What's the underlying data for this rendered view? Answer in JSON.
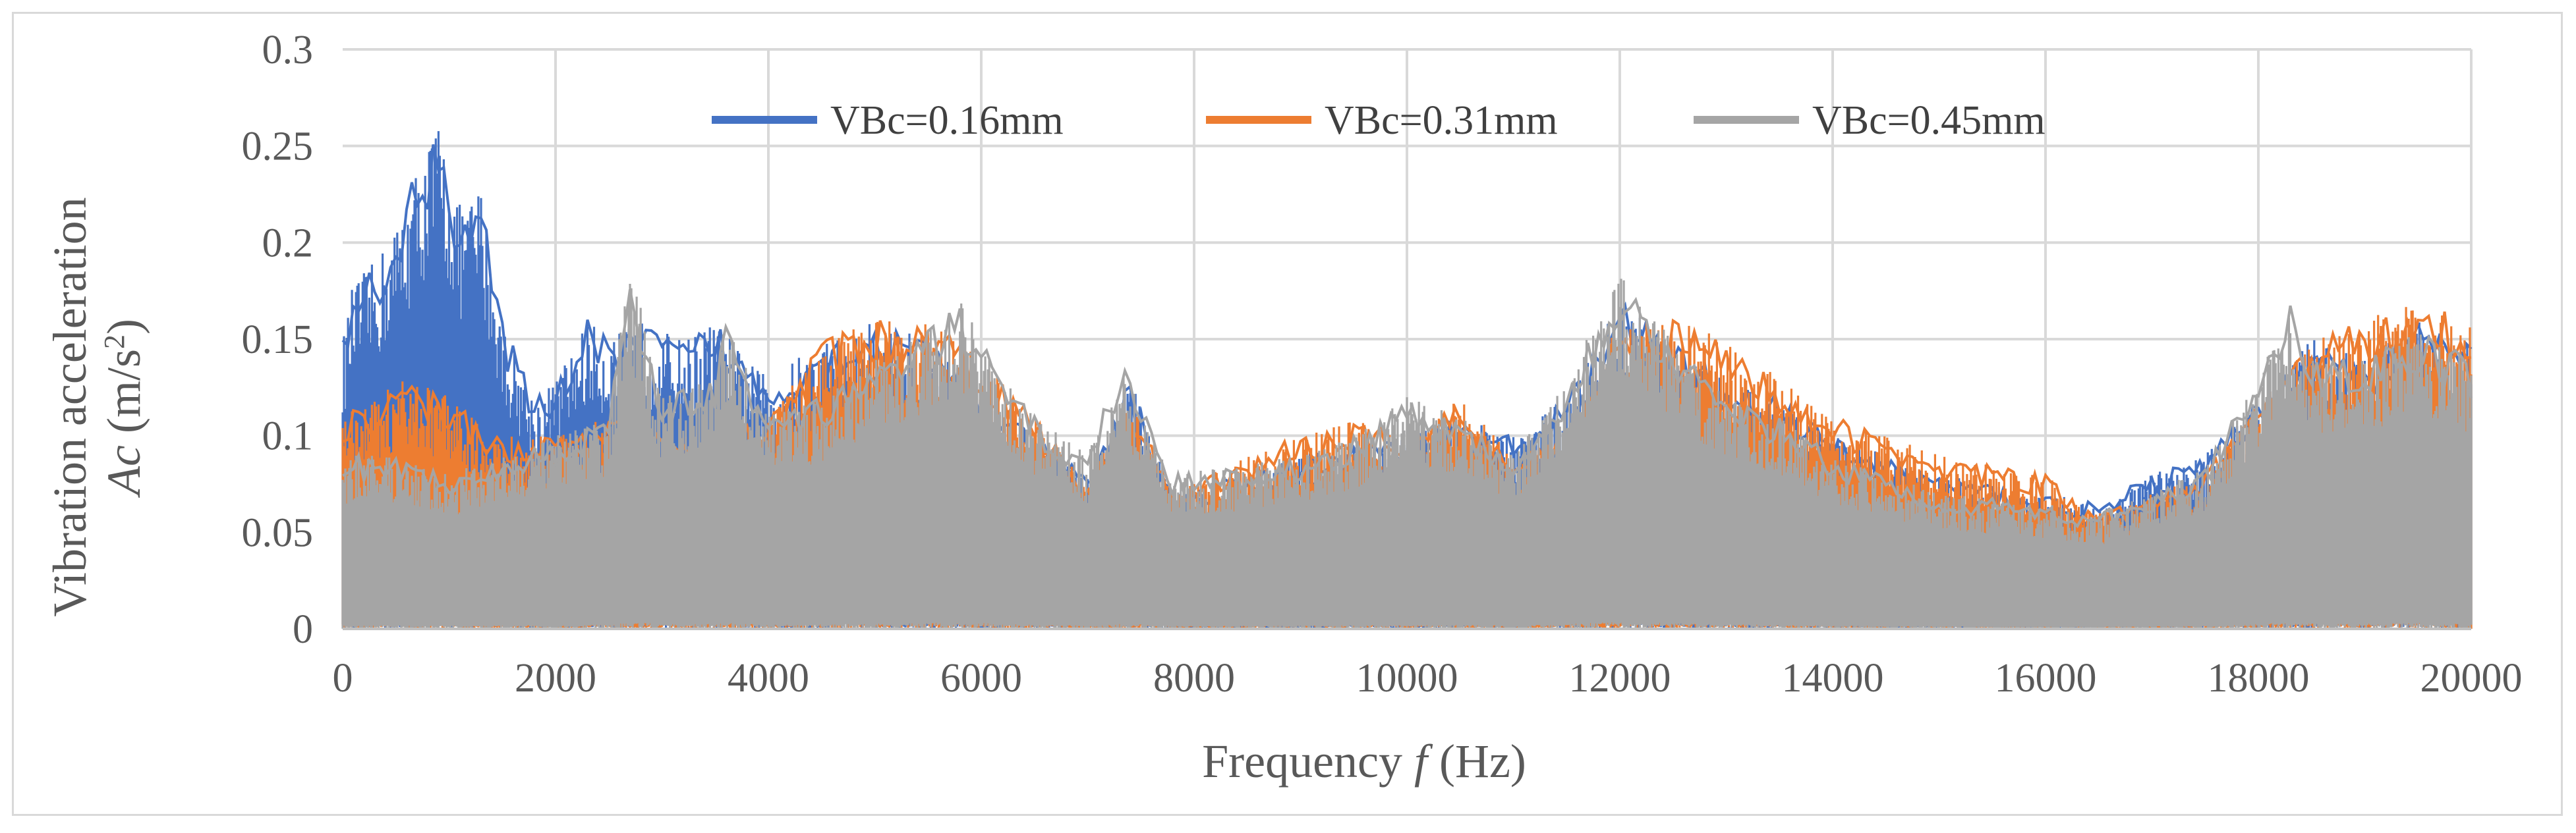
{
  "chart_data": {
    "type": "line",
    "title": "",
    "xlabel_prefix": "Frequency ",
    "xlabel_var": "f",
    "xlabel_suffix": " (Hz)",
    "ylabel_line1": "Vibration acceleration",
    "ylabel_var": "Ac",
    "ylabel_unit": " (m/s",
    "ylabel_unit_sup": "2",
    "ylabel_unit_end": ")",
    "xlim": [
      0,
      20000
    ],
    "ylim": [
      0,
      0.3
    ],
    "x_ticks": [
      "0",
      "2000",
      "4000",
      "6000",
      "8000",
      "10000",
      "12000",
      "14000",
      "16000",
      "18000",
      "20000"
    ],
    "y_ticks": [
      "0",
      "0.05",
      "0.1",
      "0.15",
      "0.2",
      "0.25",
      "0.3"
    ],
    "grid": true,
    "legend_position": "top-center",
    "series": [
      {
        "name": "VBc=0.16mm",
        "color": "#4472c4",
        "envelope": [
          [
            0,
            0.15
          ],
          [
            100,
            0.18
          ],
          [
            300,
            0.19
          ],
          [
            500,
            0.21
          ],
          [
            700,
            0.24
          ],
          [
            900,
            0.265
          ],
          [
            1100,
            0.22
          ],
          [
            1300,
            0.23
          ],
          [
            1500,
            0.16
          ],
          [
            1800,
            0.12
          ],
          [
            2000,
            0.13
          ],
          [
            2300,
            0.16
          ],
          [
            2500,
            0.15
          ],
          [
            2800,
            0.16
          ],
          [
            3200,
            0.15
          ],
          [
            3500,
            0.16
          ],
          [
            3800,
            0.14
          ],
          [
            4000,
            0.13
          ],
          [
            4500,
            0.15
          ],
          [
            5000,
            0.16
          ],
          [
            5500,
            0.15
          ],
          [
            6000,
            0.12
          ],
          [
            6500,
            0.1
          ],
          [
            7000,
            0.08
          ],
          [
            7400,
            0.13
          ],
          [
            7800,
            0.07
          ],
          [
            8500,
            0.08
          ],
          [
            9000,
            0.09
          ],
          [
            9500,
            0.095
          ],
          [
            10000,
            0.1
          ],
          [
            10500,
            0.11
          ],
          [
            11000,
            0.1
          ],
          [
            11500,
            0.12
          ],
          [
            12000,
            0.17
          ],
          [
            12500,
            0.15
          ],
          [
            13000,
            0.13
          ],
          [
            13500,
            0.12
          ],
          [
            14000,
            0.1
          ],
          [
            15000,
            0.08
          ],
          [
            16000,
            0.07
          ],
          [
            16500,
            0.065
          ],
          [
            17000,
            0.08
          ],
          [
            17500,
            0.09
          ],
          [
            18000,
            0.12
          ],
          [
            18500,
            0.15
          ],
          [
            19000,
            0.14
          ],
          [
            19500,
            0.16
          ],
          [
            20000,
            0.15
          ]
        ]
      },
      {
        "name": "VBc=0.31mm",
        "color": "#ed7d31",
        "envelope": [
          [
            0,
            0.11
          ],
          [
            300,
            0.12
          ],
          [
            600,
            0.13
          ],
          [
            1000,
            0.12
          ],
          [
            1500,
            0.1
          ],
          [
            2000,
            0.1
          ],
          [
            2500,
            0.11
          ],
          [
            3000,
            0.1
          ],
          [
            3500,
            0.1
          ],
          [
            4000,
            0.11
          ],
          [
            4500,
            0.15
          ],
          [
            5000,
            0.16
          ],
          [
            5500,
            0.16
          ],
          [
            6000,
            0.14
          ],
          [
            6500,
            0.11
          ],
          [
            7000,
            0.075
          ],
          [
            7400,
            0.12
          ],
          [
            7800,
            0.07
          ],
          [
            8500,
            0.09
          ],
          [
            9000,
            0.1
          ],
          [
            9500,
            0.11
          ],
          [
            10000,
            0.1
          ],
          [
            10500,
            0.12
          ],
          [
            11000,
            0.09
          ],
          [
            11500,
            0.1
          ],
          [
            12000,
            0.16
          ],
          [
            12500,
            0.16
          ],
          [
            13000,
            0.15
          ],
          [
            13500,
            0.13
          ],
          [
            14000,
            0.11
          ],
          [
            15000,
            0.09
          ],
          [
            16000,
            0.08
          ],
          [
            16200,
            0.07
          ],
          [
            16500,
            0.06
          ],
          [
            17000,
            0.07
          ],
          [
            17500,
            0.08
          ],
          [
            18000,
            0.12
          ],
          [
            18500,
            0.15
          ],
          [
            19000,
            0.16
          ],
          [
            19500,
            0.17
          ],
          [
            20000,
            0.16
          ]
        ]
      },
      {
        "name": "VBc=0.45mm",
        "color": "#a5a5a5",
        "envelope": [
          [
            0,
            0.09
          ],
          [
            300,
            0.09
          ],
          [
            600,
            0.09
          ],
          [
            1000,
            0.08
          ],
          [
            1500,
            0.09
          ],
          [
            2000,
            0.1
          ],
          [
            2500,
            0.11
          ],
          [
            2700,
            0.19
          ],
          [
            3000,
            0.12
          ],
          [
            3500,
            0.13
          ],
          [
            3600,
            0.16
          ],
          [
            4000,
            0.11
          ],
          [
            4500,
            0.12
          ],
          [
            5000,
            0.14
          ],
          [
            5500,
            0.155
          ],
          [
            5800,
            0.17
          ],
          [
            6000,
            0.15
          ],
          [
            6500,
            0.11
          ],
          [
            7000,
            0.09
          ],
          [
            7300,
            0.14
          ],
          [
            7800,
            0.08
          ],
          [
            8500,
            0.085
          ],
          [
            9000,
            0.09
          ],
          [
            9500,
            0.1
          ],
          [
            10000,
            0.12
          ],
          [
            10500,
            0.11
          ],
          [
            11000,
            0.09
          ],
          [
            11500,
            0.13
          ],
          [
            12000,
            0.185
          ],
          [
            12500,
            0.15
          ],
          [
            13000,
            0.12
          ],
          [
            13500,
            0.11
          ],
          [
            14000,
            0.09
          ],
          [
            15000,
            0.07
          ],
          [
            16000,
            0.065
          ],
          [
            16500,
            0.06
          ],
          [
            17000,
            0.07
          ],
          [
            17500,
            0.085
          ],
          [
            18000,
            0.13
          ],
          [
            18300,
            0.17
          ],
          [
            18500,
            0.14
          ],
          [
            19000,
            0.14
          ],
          [
            19500,
            0.155
          ],
          [
            20000,
            0.14
          ]
        ]
      }
    ]
  }
}
